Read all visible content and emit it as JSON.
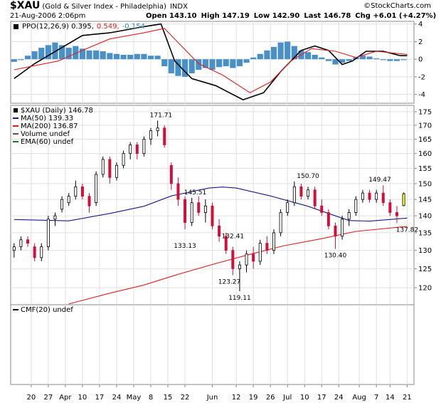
{
  "header": {
    "symbol": "$XAU",
    "name": "(Gold & Silver Index - Philadelphia)",
    "exchange": "INDX",
    "copyright": "©StockCharts.com",
    "date": "21-Aug-2006 2:06pm",
    "quote": [
      "Open 143.10",
      "High 147.19",
      "Low 142.90",
      "Last 146.78",
      "Chg +6.01 (+4.27%)"
    ]
  },
  "chart_data": [
    {
      "type": "line",
      "legend": [
        {
          "label": "PPO(12,26,9) 0.395,",
          "color": "#000000"
        },
        {
          "label": "0.549,",
          "color": "#e02020"
        },
        {
          "label": "-0.154",
          "color": "#2a8a9a"
        }
      ],
      "xlim": [
        -1,
        117
      ],
      "ylim": [
        -5,
        4.3
      ],
      "yticks": [
        4,
        2,
        0,
        -2,
        -4
      ],
      "grid": true,
      "series": [
        {
          "style": "bar",
          "color": "#4a90c8",
          "x": [
            0,
            2,
            4,
            6,
            8,
            10,
            12,
            14,
            16,
            18,
            20,
            22,
            24,
            26,
            28,
            30,
            32,
            34,
            36,
            38,
            40,
            42,
            44,
            46,
            48,
            50,
            52,
            54,
            56,
            58,
            60,
            62,
            64,
            66,
            68,
            70,
            72,
            74,
            76,
            78,
            80,
            82,
            84,
            86,
            88,
            90,
            92,
            94,
            96,
            98,
            100,
            102,
            104,
            106,
            108,
            110,
            112,
            114
          ],
          "values": [
            -0.3,
            -0.1,
            0.4,
            0.9,
            1.3,
            1.6,
            1.9,
            1.6,
            1.3,
            1.5,
            1.2,
            1.0,
            1.0,
            0.9,
            0.7,
            0.6,
            0.5,
            0.5,
            0.6,
            0.6,
            0.4,
            0.4,
            -0.8,
            -1.6,
            -1.9,
            -2.0,
            -1.6,
            -1.2,
            -1.0,
            -1.2,
            -0.9,
            -0.8,
            -1.0,
            -0.8,
            -0.4,
            0.2,
            0.6,
            1.0,
            1.4,
            1.9,
            2.0,
            1.5,
            1.0,
            0.8,
            0.5,
            0.2,
            -0.2,
            -0.6,
            -0.4,
            -0.2,
            0.2,
            0.4,
            0.3,
            0.1,
            -0.1,
            -0.2,
            -0.2,
            -0.1
          ]
        },
        {
          "style": "line",
          "color": "#000000",
          "x": [
            0,
            6,
            13,
            20,
            28,
            38,
            43,
            47,
            52,
            59,
            67,
            73,
            78,
            84,
            88,
            92,
            96,
            99,
            103,
            108,
            113,
            115
          ],
          "values": [
            -2.2,
            -0.5,
            1.1,
            2.7,
            3.0,
            3.7,
            4.0,
            -0.2,
            -2.2,
            -3.0,
            -4.6,
            -3.8,
            -1.4,
            1.0,
            1.5,
            1.0,
            -0.6,
            -0.2,
            0.9,
            0.9,
            0.4,
            0.4
          ]
        },
        {
          "style": "line",
          "color": "#e02020",
          "x": [
            0,
            13,
            20,
            28,
            38,
            44,
            48,
            54,
            61,
            69,
            75,
            81,
            87,
            94,
            100,
            106,
            115
          ],
          "values": [
            -1.2,
            -0.2,
            1.0,
            2.3,
            3.0,
            3.5,
            1.9,
            -0.5,
            -1.8,
            -3.8,
            -2.6,
            -0.2,
            1.2,
            0.9,
            0.2,
            0.9,
            0.55
          ]
        }
      ]
    },
    {
      "type": "candlestick",
      "log": true,
      "grid": true,
      "xlim": [
        -1,
        117
      ],
      "ylim": [
        115.7,
        177.4
      ],
      "yticks": [
        175,
        170,
        165,
        160,
        155,
        150,
        145,
        140,
        135,
        130,
        125,
        120
      ],
      "up_color": "#000000",
      "down_color": "#d0103a",
      "last_color": "#ffff40",
      "legend": [
        {
          "label": "$XAU (Daily) 146.78",
          "color": "#000000"
        },
        {
          "label": "MA(50) 139.33",
          "color": "#1a1a8c"
        },
        {
          "label": "MA(200) 136.87",
          "color": "#e02020"
        },
        {
          "label": "Volume undef",
          "color": "#555555"
        },
        {
          "label": "EMA(60) undef",
          "color": "#1a7a1a"
        }
      ],
      "x": [
        0,
        2,
        4,
        6,
        8,
        10,
        12,
        14,
        16,
        18,
        20,
        22,
        24,
        26,
        28,
        30,
        32,
        34,
        36,
        38,
        40,
        42,
        44,
        46,
        48,
        50,
        52,
        54,
        56,
        58,
        60,
        62,
        64,
        66,
        68,
        70,
        72,
        74,
        76,
        78,
        80,
        82,
        84,
        86,
        88,
        90,
        92,
        94,
        96,
        98,
        100,
        102,
        104,
        106,
        108,
        110,
        112,
        114
      ],
      "open": [
        130,
        131,
        133,
        131,
        128,
        131,
        139,
        142,
        144,
        146,
        149,
        146,
        144,
        153,
        158,
        152,
        156,
        160,
        163,
        160,
        165,
        168,
        169,
        156,
        150,
        145,
        138,
        144,
        141,
        143,
        137,
        134,
        130,
        125,
        126,
        129,
        127,
        132,
        130,
        135,
        141,
        144,
        149,
        146,
        148,
        143,
        141,
        137,
        134,
        139,
        141,
        145,
        147,
        145,
        147,
        144,
        141,
        143.1
      ],
      "high": [
        132,
        134,
        134,
        132,
        132,
        140,
        141,
        146,
        147,
        151,
        150,
        147,
        154,
        159,
        159,
        157,
        161,
        164,
        164,
        166,
        169,
        171.71,
        170,
        157,
        152,
        146,
        145.51,
        146,
        145,
        144,
        139,
        135,
        131,
        127,
        130,
        131,
        133,
        134,
        136,
        142,
        145,
        150.7,
        150,
        149,
        149,
        145,
        142,
        138,
        140,
        142,
        146,
        148,
        148,
        148,
        149.47,
        145,
        143,
        147.19
      ],
      "low": [
        128,
        130,
        131,
        127,
        127,
        130,
        137,
        141,
        143,
        145,
        145,
        141,
        143,
        152,
        150,
        151,
        155,
        158,
        158,
        159,
        163,
        166,
        162,
        148,
        143,
        136,
        137,
        140,
        138,
        136,
        132.41,
        129,
        123.27,
        119.11,
        124,
        125,
        126,
        129,
        129,
        134,
        140,
        143,
        145,
        145,
        142,
        140,
        136,
        130.4,
        133,
        137,
        140,
        144,
        144,
        144,
        143,
        140,
        137.82,
        142.9
      ],
      "close": [
        131,
        133,
        132,
        128,
        131,
        139,
        140,
        145,
        146,
        149,
        146,
        143,
        153,
        158,
        152,
        156,
        160,
        163,
        160,
        165,
        168,
        169,
        163,
        150,
        145,
        138,
        144,
        141,
        143,
        137,
        134,
        130,
        125,
        126,
        129,
        127,
        132,
        130,
        135,
        141,
        144,
        149,
        146,
        148,
        143,
        141,
        137,
        134,
        139,
        141,
        145,
        147,
        145,
        147,
        144,
        141,
        140,
        146.78
      ],
      "series": [
        {
          "color": "#1a1a8c",
          "x": [
            0,
            16,
            28,
            38,
            46,
            57,
            61,
            65,
            75,
            86,
            92,
            98,
            104,
            115
          ],
          "values": [
            138.9,
            138.5,
            140.7,
            142.9,
            146.1,
            148.6,
            148.9,
            148.6,
            146.1,
            142.9,
            140.7,
            138.6,
            138.4,
            139.33
          ]
        },
        {
          "color": "#e02020",
          "x": [
            16,
            28,
            38,
            48,
            59,
            69,
            79,
            90,
            100,
            115
          ],
          "values": [
            115.9,
            118.6,
            120.7,
            123.5,
            126.4,
            128.9,
            131.3,
            133.3,
            135.4,
            136.87
          ]
        }
      ],
      "annotations": [
        {
          "text": "171.71",
          "x": 43,
          "y": 171.71,
          "position": "above"
        },
        {
          "text": "145.51",
          "x": 53,
          "y": 145.51,
          "position": "above"
        },
        {
          "text": "133.13",
          "x": 50,
          "y": 133.13,
          "position": "below"
        },
        {
          "text": "132.41",
          "x": 64,
          "y": 132.41,
          "position": "above"
        },
        {
          "text": "123.27",
          "x": 63,
          "y": 123.27,
          "position": "below"
        },
        {
          "text": "119.11",
          "x": 66,
          "y": 119.11,
          "position": "below"
        },
        {
          "text": "150.70",
          "x": 86,
          "y": 150.7,
          "position": "above"
        },
        {
          "text": "130.40",
          "x": 94,
          "y": 130.4,
          "position": "below"
        },
        {
          "text": "149.47",
          "x": 107,
          "y": 149.47,
          "position": "above"
        },
        {
          "text": "137.82",
          "x": 115,
          "y": 137.82,
          "position": "below"
        }
      ]
    },
    {
      "type": "line",
      "legend": [
        {
          "label": "CMF(20) undef",
          "color": "#000000"
        }
      ],
      "xlim": [
        -1,
        117
      ],
      "grid": true,
      "series": [],
      "xticks": [
        {
          "value": 5,
          "label": "20"
        },
        {
          "value": 10,
          "label": "27"
        },
        {
          "value": 15,
          "label": "Apr"
        },
        {
          "value": 20,
          "label": "10"
        },
        {
          "value": 25,
          "label": "17"
        },
        {
          "value": 30,
          "label": "24"
        },
        {
          "value": 35,
          "label": "May"
        },
        {
          "value": 40,
          "label": "8"
        },
        {
          "value": 45,
          "label": "15"
        },
        {
          "value": 50,
          "label": "22"
        },
        {
          "value": 58,
          "label": "Jun"
        },
        {
          "value": 65,
          "label": "12"
        },
        {
          "value": 70,
          "label": "19"
        },
        {
          "value": 75,
          "label": "26"
        },
        {
          "value": 80,
          "label": "Jul"
        },
        {
          "value": 85,
          "label": "10"
        },
        {
          "value": 90,
          "label": "17"
        },
        {
          "value": 95,
          "label": "24"
        },
        {
          "value": 101,
          "label": "Aug"
        },
        {
          "value": 106,
          "label": "7"
        },
        {
          "value": 110,
          "label": "14"
        },
        {
          "value": 115,
          "label": "21"
        }
      ]
    }
  ]
}
